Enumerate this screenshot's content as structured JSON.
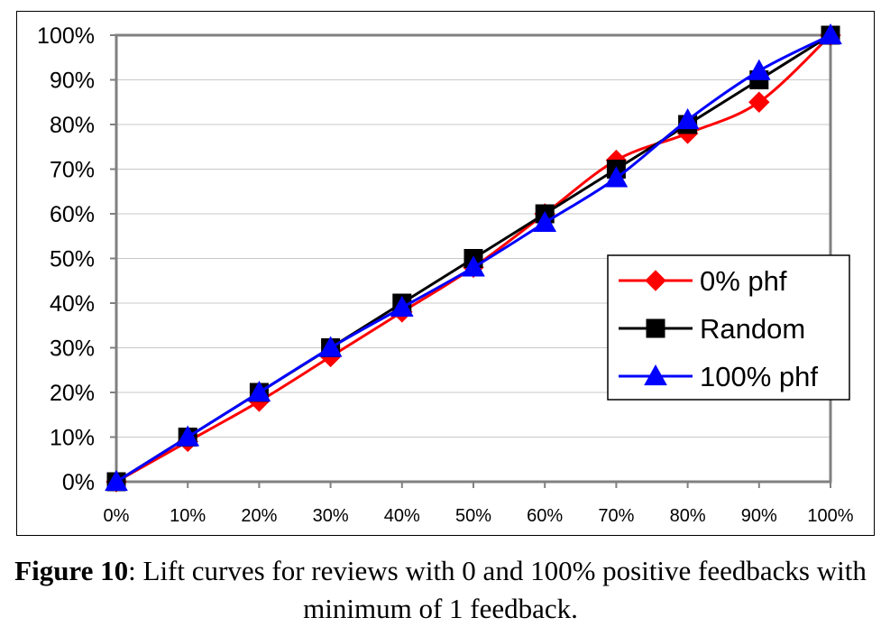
{
  "chart_data": {
    "type": "line",
    "x": [
      "0%",
      "10%",
      "20%",
      "30%",
      "40%",
      "50%",
      "60%",
      "70%",
      "80%",
      "90%",
      "100%"
    ],
    "x_values": [
      0,
      10,
      20,
      30,
      40,
      50,
      60,
      70,
      80,
      90,
      100
    ],
    "y_ticks": [
      "0%",
      "10%",
      "20%",
      "30%",
      "40%",
      "50%",
      "60%",
      "70%",
      "80%",
      "90%",
      "100%"
    ],
    "ylim": [
      0,
      100
    ],
    "xlim": [
      0,
      100
    ],
    "grid": "horizontal",
    "legend_position": "right",
    "series": [
      {
        "name": "0% phf",
        "color": "#ff0000",
        "marker": "diamond",
        "values": [
          0,
          9,
          18,
          28,
          38,
          48,
          60,
          72,
          78,
          85,
          100
        ]
      },
      {
        "name": "Random",
        "color": "#000000",
        "marker": "square",
        "values": [
          0,
          10,
          20,
          30,
          40,
          50,
          60,
          70,
          80,
          90,
          100
        ]
      },
      {
        "name": "100% phf",
        "color": "#0000ff",
        "marker": "triangle",
        "values": [
          0,
          10,
          20,
          30,
          39,
          48,
          58,
          68,
          81,
          92,
          100
        ]
      }
    ]
  },
  "caption": {
    "label": "Figure 10",
    "text": ": Lift curves for reviews with 0 and 100% positive feedbacks with minimum of 1 feedback."
  }
}
